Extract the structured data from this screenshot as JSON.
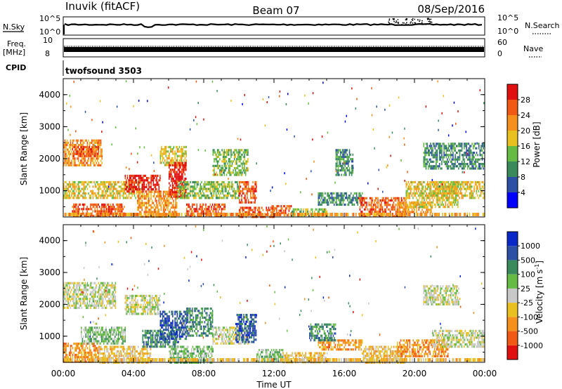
{
  "header": {
    "station": "Inuvik (fitACF)",
    "beam": "Beam 07",
    "date": "08/Sep/2016"
  },
  "panels": {
    "nsky_label": "N.Sky",
    "nsky_ticks": [
      "10^5",
      "10^0"
    ],
    "nsearch_label": "N.Search",
    "nsearch_ticks": [
      "10^5",
      "10^0"
    ],
    "freq_label_1": "Freq.",
    "freq_label_2": "[MHz]",
    "freq_ticks": [
      "10",
      "8"
    ],
    "nave_label": "Nave",
    "nave_ticks": [
      "60",
      "0"
    ],
    "cpid_label": "CPID",
    "cpid_value": "twofsound 3503"
  },
  "colors": {
    "power": [
      "#0000ff",
      "#2d4fa4",
      "#3a8a5c",
      "#66bb44",
      "#e8c020",
      "#f5901c",
      "#f05a14",
      "#e01010"
    ],
    "velocity": [
      "#e01010",
      "#f05a14",
      "#f5901c",
      "#e8c020",
      "#c8c8c8",
      "#66bb44",
      "#3a8a5c",
      "#2d4fa4",
      "#0a28c8"
    ]
  },
  "chart_data": [
    {
      "type": "heatmap",
      "quantity": "Power",
      "xlabel": "Time UT",
      "ylabel": "Slant Range [km]",
      "xticks": [
        "00:00",
        "04:00",
        "08:00",
        "12:00",
        "16:00",
        "20:00",
        "00:00"
      ],
      "xlim_hours": [
        0,
        24
      ],
      "ylim_km": [
        180,
        4500
      ],
      "yticks": [
        1000,
        2000,
        3000,
        4000
      ],
      "colorbar_label": "Power [dB]",
      "colorbar_ticks": [
        "28",
        "24",
        "20",
        "16",
        "12",
        "8",
        "4"
      ],
      "colorbar_range": [
        0,
        32
      ],
      "regions": [
        {
          "t0": 0.0,
          "t1": 2.2,
          "r0": 1800,
          "r1": 2600,
          "level": 20
        },
        {
          "t0": 0.5,
          "t1": 2.0,
          "r0": 2100,
          "r1": 2400,
          "level": 26
        },
        {
          "t0": 0.0,
          "t1": 4.5,
          "r0": 800,
          "r1": 1300,
          "level": 16
        },
        {
          "t0": 0.5,
          "t1": 3.5,
          "r0": 200,
          "r1": 600,
          "level": 27
        },
        {
          "t0": 3.5,
          "t1": 5.5,
          "r0": 1000,
          "r1": 1500,
          "level": 28
        },
        {
          "t0": 4.2,
          "t1": 6.5,
          "r0": 200,
          "r1": 1000,
          "level": 22
        },
        {
          "t0": 5.5,
          "t1": 7.0,
          "r0": 1800,
          "r1": 2400,
          "level": 18
        },
        {
          "t0": 6.0,
          "t1": 7.0,
          "r0": 800,
          "r1": 1900,
          "level": 29
        },
        {
          "t0": 7.0,
          "t1": 9.2,
          "r0": 200,
          "r1": 600,
          "level": 27
        },
        {
          "t0": 6.5,
          "t1": 10.0,
          "r0": 800,
          "r1": 1300,
          "level": 15
        },
        {
          "t0": 8.5,
          "t1": 10.5,
          "r0": 1500,
          "r1": 2300,
          "level": 14
        },
        {
          "t0": 10.0,
          "t1": 11.0,
          "r0": 600,
          "r1": 1300,
          "level": 26
        },
        {
          "t0": 10.0,
          "t1": 12.0,
          "r0": 200,
          "r1": 500,
          "level": 24
        },
        {
          "t0": 11.8,
          "t1": 13.0,
          "r0": 200,
          "r1": 550,
          "level": 27
        },
        {
          "t0": 13.0,
          "t1": 15.0,
          "r0": 200,
          "r1": 450,
          "level": 14
        },
        {
          "t0": 14.5,
          "t1": 17.0,
          "r0": 550,
          "r1": 950,
          "level": 9
        },
        {
          "t0": 15.5,
          "t1": 16.5,
          "r0": 1500,
          "r1": 2300,
          "level": 10
        },
        {
          "t0": 16.8,
          "t1": 19.5,
          "r0": 200,
          "r1": 800,
          "level": 24
        },
        {
          "t0": 19.0,
          "t1": 21.0,
          "r0": 350,
          "r1": 650,
          "level": 20
        },
        {
          "t0": 19.5,
          "t1": 22.5,
          "r0": 500,
          "r1": 1300,
          "level": 18
        },
        {
          "t0": 21.0,
          "t1": 24.0,
          "r0": 800,
          "r1": 1300,
          "level": 16
        },
        {
          "t0": 20.5,
          "t1": 24.0,
          "r0": 1700,
          "r1": 2500,
          "level": 9
        }
      ]
    },
    {
      "type": "heatmap",
      "quantity": "Velocity",
      "xlabel": "Time UT",
      "ylabel": "Slant Range [km]",
      "xticks": [
        "00:00",
        "04:00",
        "08:00",
        "12:00",
        "16:00",
        "20:00",
        "00:00"
      ],
      "xlim_hours": [
        0,
        24
      ],
      "ylim_km": [
        180,
        4500
      ],
      "yticks": [
        1000,
        2000,
        3000,
        4000
      ],
      "colorbar_label": "Velocity [m s",
      "colorbar_sup": "-1",
      "colorbar_label_end": "]",
      "colorbar_ticks": [
        "1000",
        "500",
        "100",
        "25",
        "-25",
        "-100",
        "-500",
        "-1000"
      ],
      "regions": [
        {
          "t0": 0.0,
          "t1": 3.0,
          "r0": 1900,
          "r1": 2700,
          "level": 4
        },
        {
          "t0": 0.0,
          "t1": 2.0,
          "r0": 200,
          "r1": 800,
          "level": 2
        },
        {
          "t0": 1.0,
          "t1": 3.5,
          "r0": 800,
          "r1": 1300,
          "level": 5
        },
        {
          "t0": 2.0,
          "t1": 5.0,
          "r0": 200,
          "r1": 700,
          "level": 3
        },
        {
          "t0": 3.5,
          "t1": 5.5,
          "r0": 1700,
          "r1": 2300,
          "level": 4
        },
        {
          "t0": 4.5,
          "t1": 6.5,
          "r0": 700,
          "r1": 1200,
          "level": 6
        },
        {
          "t0": 5.5,
          "t1": 7.0,
          "r0": 900,
          "r1": 1800,
          "level": 7
        },
        {
          "t0": 7.0,
          "t1": 8.5,
          "r0": 1000,
          "r1": 1900,
          "level": 6
        },
        {
          "t0": 6.0,
          "t1": 8.5,
          "r0": 200,
          "r1": 700,
          "level": 5
        },
        {
          "t0": 8.5,
          "t1": 10.5,
          "r0": 800,
          "r1": 1300,
          "level": 4
        },
        {
          "t0": 9.8,
          "t1": 11.0,
          "r0": 800,
          "r1": 1700,
          "level": 7
        },
        {
          "t0": 11.0,
          "t1": 12.5,
          "r0": 200,
          "r1": 600,
          "level": 5
        },
        {
          "t0": 12.5,
          "t1": 15.0,
          "r0": 200,
          "r1": 500,
          "level": 3
        },
        {
          "t0": 14.5,
          "t1": 17.0,
          "r0": 550,
          "r1": 900,
          "level": 2
        },
        {
          "t0": 14.0,
          "t1": 15.5,
          "r0": 900,
          "r1": 1400,
          "level": 6
        },
        {
          "t0": 17.0,
          "t1": 19.5,
          "r0": 200,
          "r1": 700,
          "level": 3
        },
        {
          "t0": 19.0,
          "t1": 22.0,
          "r0": 400,
          "r1": 900,
          "level": 2
        },
        {
          "t0": 21.0,
          "t1": 24.0,
          "r0": 700,
          "r1": 1200,
          "level": 4
        },
        {
          "t0": 20.5,
          "t1": 22.5,
          "r0": 2000,
          "r1": 2600,
          "level": 4
        }
      ]
    }
  ]
}
